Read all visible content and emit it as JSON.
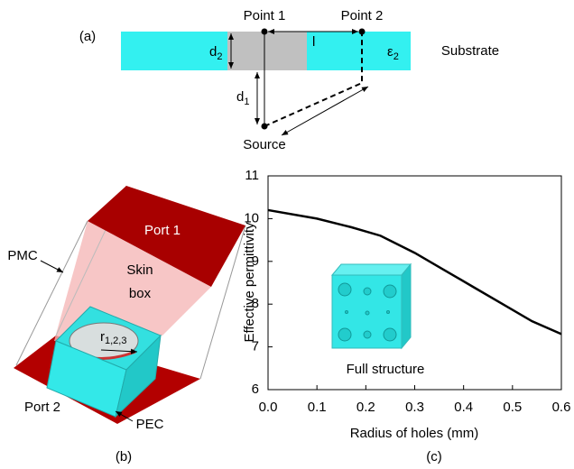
{
  "figure_labels": {
    "a": "(a)",
    "b": "(b)",
    "c": "(c)"
  },
  "panel_a": {
    "point1": "Point 1",
    "point2": "Point 2",
    "d2": [
      "d",
      "2"
    ],
    "l": "l",
    "eps2": [
      "ε",
      "2"
    ],
    "substrate": "Substrate",
    "d1": [
      "d",
      "1"
    ],
    "source": "Source"
  },
  "panel_b": {
    "port1": "Port 1",
    "pmc": "PMC",
    "skin_box": [
      "Skin",
      "box"
    ],
    "r": [
      "r",
      "1,2,3"
    ],
    "port2": "Port 2",
    "pec": "PEC"
  },
  "chart_data": {
    "type": "line",
    "x_label": "Radius of holes (mm)",
    "y_label": "Effective permittivity",
    "inset_label": "Full structure",
    "x": [
      0,
      0.1,
      0.17,
      0.23,
      0.3,
      0.36,
      0.42,
      0.48,
      0.54,
      0.6
    ],
    "series": [
      {
        "name": null,
        "color": "#000000",
        "values": [
          10.2,
          10.0,
          9.8,
          9.6,
          9.2,
          8.8,
          8.4,
          8.0,
          7.6,
          7.3
        ]
      }
    ],
    "xlim": [
      0,
      0.6
    ],
    "ylim": [
      6,
      11
    ],
    "xticks": [
      {
        "value": 0,
        "label": "0.0"
      },
      0.1,
      0.2,
      0.3,
      0.4,
      0.5,
      0.6
    ],
    "yticks": [
      6,
      7,
      8,
      9,
      10,
      11
    ]
  }
}
